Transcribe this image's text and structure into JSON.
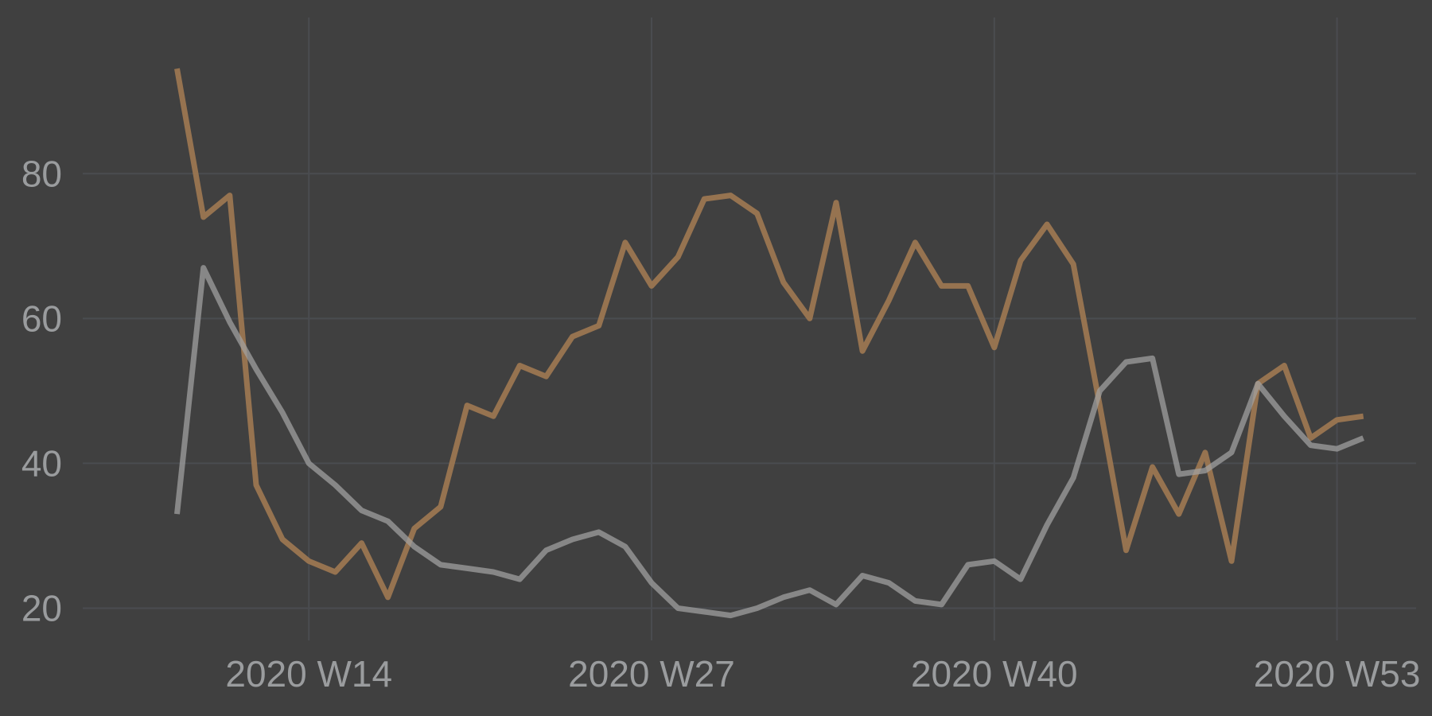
{
  "chart_data": {
    "type": "line",
    "title": "",
    "xlabel": "",
    "ylabel": "",
    "background": "#404040",
    "grid": true,
    "legend": "none",
    "x_unit": "ISO week (2020 W14 = 14)",
    "xlim": [
      5,
      56
    ],
    "ylim": [
      15,
      102
    ],
    "x_ticks": [
      {
        "value": 14,
        "label": "2020 W14"
      },
      {
        "value": 27,
        "label": "2020 W27"
      },
      {
        "value": 40,
        "label": "2020 W40"
      },
      {
        "value": 53,
        "label": "2020 W53"
      }
    ],
    "y_ticks": [
      {
        "value": 20,
        "label": "20"
      },
      {
        "value": 40,
        "label": "40"
      },
      {
        "value": 60,
        "label": "60"
      },
      {
        "value": 80,
        "label": "80"
      }
    ],
    "x": [
      9,
      10,
      11,
      12,
      13,
      14,
      15,
      16,
      17,
      18,
      19,
      20,
      21,
      22,
      23,
      24,
      25,
      26,
      27,
      28,
      29,
      30,
      31,
      32,
      33,
      34,
      35,
      36,
      37,
      38,
      39,
      40,
      41,
      42,
      43,
      44,
      45,
      46,
      47,
      48,
      49,
      50,
      51,
      52,
      53,
      54
    ],
    "series": [
      {
        "color": "#9b7651",
        "opacity": 0.95,
        "values": [
          94.5,
          74,
          77,
          37,
          29.5,
          26.5,
          25,
          29,
          21.5,
          31,
          34,
          48,
          46.5,
          53.5,
          52,
          57.5,
          59,
          70.5,
          64.5,
          68.5,
          76.5,
          77,
          74.5,
          65,
          60,
          76,
          55.5,
          62.5,
          70.5,
          64.5,
          64.5,
          56,
          68,
          73,
          67.5,
          48,
          28,
          39.5,
          33,
          41.5,
          26.5,
          51,
          53.5,
          43.5,
          46,
          46.5
        ]
      },
      {
        "color": "#a2a2a2",
        "opacity": 0.72,
        "values": [
          33,
          67,
          59.5,
          53,
          47,
          40,
          37,
          33.5,
          32,
          28.5,
          26,
          25.5,
          25,
          24,
          28,
          29.5,
          30.5,
          28.5,
          23.5,
          20,
          19.5,
          19,
          20,
          21.5,
          22.5,
          20.5,
          24.5,
          23.5,
          21,
          20.5,
          26,
          26.5,
          24,
          31.5,
          38,
          50,
          54,
          54.5,
          38.5,
          39,
          41.5,
          51,
          46.5,
          42.5,
          42,
          43.5
        ]
      }
    ]
  }
}
